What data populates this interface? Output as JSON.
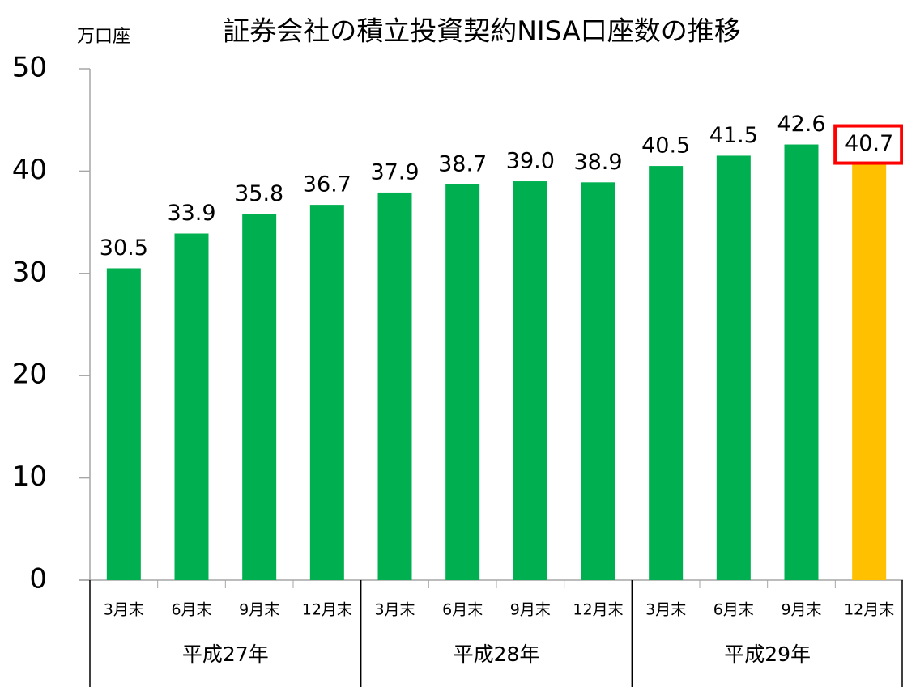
{
  "chart_data": {
    "type": "bar",
    "title": "証券会社の積立投資契約NISA口座数の推移",
    "y_label": "万口座",
    "categories": [
      "3月末",
      "6月末",
      "9月末",
      "12月末",
      "3月末",
      "6月末",
      "9月末",
      "12月末",
      "3月末",
      "6月末",
      "9月末",
      "12月末"
    ],
    "groups": [
      "平成27年",
      "平成28年",
      "平成29年"
    ],
    "values": [
      30.5,
      33.9,
      35.8,
      36.7,
      37.9,
      38.7,
      39.0,
      38.9,
      40.5,
      41.5,
      42.6,
      40.7
    ],
    "value_labels": [
      "30.5",
      "33.9",
      "35.8",
      "36.7",
      "37.9",
      "38.7",
      "39.0",
      "38.9",
      "40.5",
      "41.5",
      "42.6",
      "40.7"
    ],
    "color": "#00b050",
    "highlight": {
      "index": 11,
      "color": "#ffc000",
      "box_color": "#ff0000"
    },
    "ylim": [
      0,
      50
    ],
    "yticks": [
      0,
      10,
      20,
      30,
      40,
      50
    ]
  }
}
